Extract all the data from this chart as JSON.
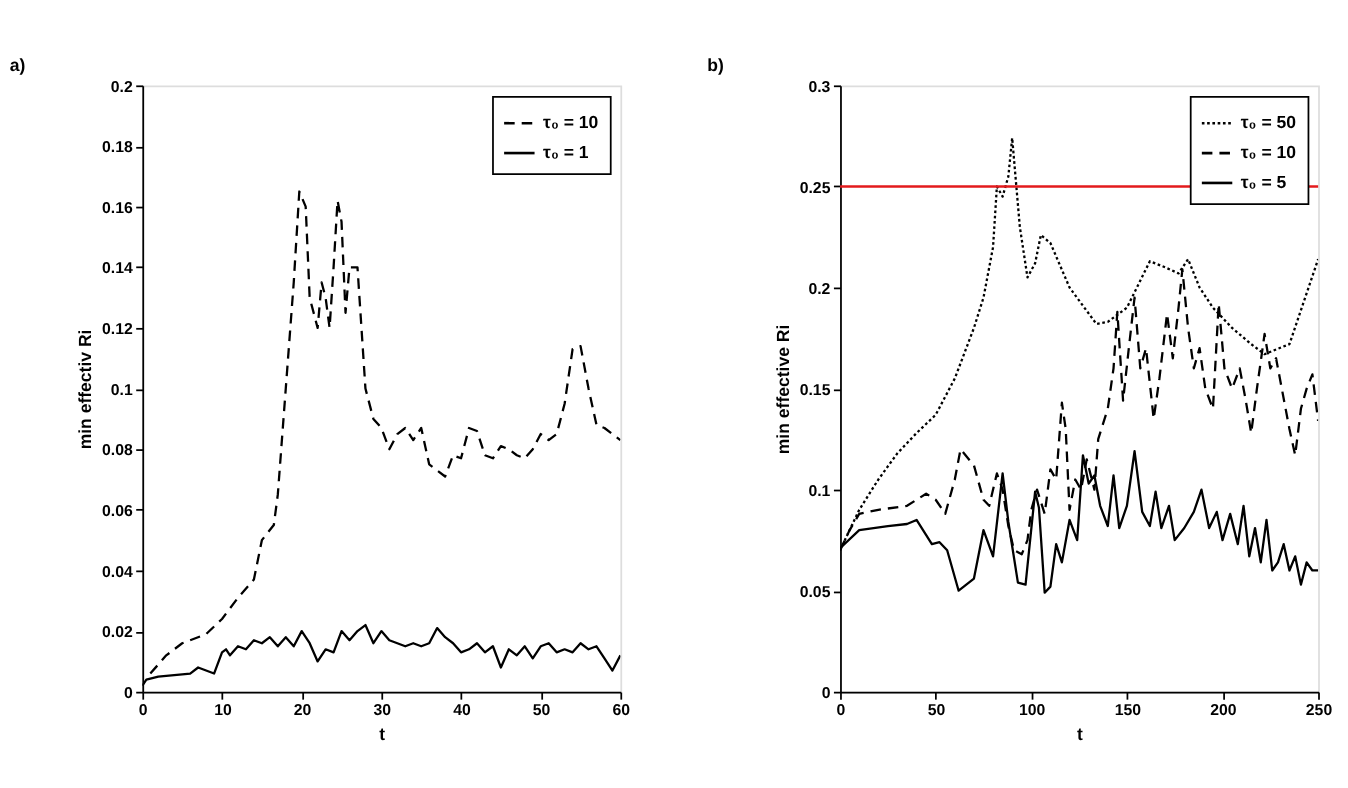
{
  "chart_data": [
    {
      "type": "line",
      "annotations": [
        "a)"
      ],
      "xlabel": "t",
      "ylabel": "min effectiv Ri",
      "xlim": [
        0,
        60
      ],
      "ylim": [
        0,
        0.2
      ],
      "xticks": [
        0,
        10,
        20,
        30,
        40,
        50,
        60
      ],
      "yticks": [
        0,
        0.02,
        0.04,
        0.06,
        0.08,
        0.1,
        0.12,
        0.14,
        0.16,
        0.18,
        0.2
      ],
      "legend": "top right",
      "series": [
        {
          "name": "τ₀ = 10",
          "color": "#000000",
          "line_style": "dashed",
          "x": [
            1,
            3,
            5,
            8,
            10,
            12,
            14,
            15,
            16.5,
            17,
            18,
            19,
            19.7,
            20.5,
            21,
            22,
            22.5,
            23,
            23.5,
            24,
            24.5,
            25,
            25.5,
            26,
            27,
            28,
            29,
            30,
            31,
            32,
            33,
            34,
            35,
            36,
            37,
            38,
            39,
            40,
            41,
            42,
            43,
            44,
            45,
            46,
            47,
            48,
            49,
            50,
            51,
            52,
            53,
            54,
            55,
            56,
            57,
            58,
            59,
            60
          ],
          "values": [
            0.006,
            0.012,
            0.016,
            0.019,
            0.024,
            0.031,
            0.037,
            0.05,
            0.055,
            0.065,
            0.1,
            0.135,
            0.165,
            0.16,
            0.13,
            0.12,
            0.135,
            0.13,
            0.12,
            0.14,
            0.162,
            0.155,
            0.125,
            0.14,
            0.14,
            0.1,
            0.09,
            0.087,
            0.08,
            0.085,
            0.087,
            0.083,
            0.087,
            0.075,
            0.073,
            0.071,
            0.078,
            0.077,
            0.087,
            0.086,
            0.078,
            0.077,
            0.081,
            0.08,
            0.078,
            0.077,
            0.08,
            0.085,
            0.083,
            0.085,
            0.095,
            0.113,
            0.114,
            0.1,
            0.088,
            0.087,
            0.085,
            0.083
          ]
        },
        {
          "name": "τ₀ = 1",
          "color": "#000000",
          "line_style": "solid",
          "x": [
            0,
            0.5,
            2,
            6,
            7,
            8,
            9,
            10,
            10.5,
            11,
            12,
            13,
            14,
            15,
            16,
            17,
            18,
            19,
            20,
            21,
            22,
            23,
            24,
            25,
            26,
            27,
            28,
            29,
            30,
            31,
            32,
            33,
            34,
            35,
            36,
            37,
            38,
            39,
            40,
            41,
            42,
            43,
            44,
            45,
            46,
            47,
            48,
            49,
            50,
            51,
            52,
            53,
            54,
            55,
            56,
            57,
            58,
            59,
            60
          ],
          "values": [
            0.002,
            0.004,
            0.005,
            0.006,
            0.008,
            0.007,
            0.006,
            0.013,
            0.014,
            0.012,
            0.015,
            0.014,
            0.017,
            0.016,
            0.018,
            0.015,
            0.018,
            0.015,
            0.02,
            0.016,
            0.01,
            0.014,
            0.013,
            0.02,
            0.017,
            0.02,
            0.022,
            0.016,
            0.02,
            0.017,
            0.016,
            0.015,
            0.016,
            0.015,
            0.016,
            0.021,
            0.018,
            0.016,
            0.013,
            0.014,
            0.016,
            0.013,
            0.015,
            0.008,
            0.014,
            0.012,
            0.015,
            0.011,
            0.015,
            0.016,
            0.013,
            0.014,
            0.013,
            0.016,
            0.014,
            0.015,
            0.011,
            0.007,
            0.012
          ]
        }
      ]
    },
    {
      "type": "line",
      "annotations": [
        "b)"
      ],
      "xlabel": "t",
      "ylabel": "min effective Ri",
      "xlim": [
        0,
        250
      ],
      "ylim": [
        0,
        0.3
      ],
      "xticks": [
        0,
        50,
        100,
        150,
        200,
        250
      ],
      "yticks": [
        0,
        0.05,
        0.1,
        0.15,
        0.2,
        0.25,
        0.3
      ],
      "legend": "top right",
      "ref_lines": [
        {
          "axis": "y",
          "value": 0.25,
          "color": "#e31a1c"
        }
      ],
      "series": [
        {
          "name": "τ₀ = 50",
          "color": "#000000",
          "line_style": "dotted",
          "x": [
            0,
            5,
            10,
            20,
            30,
            40,
            50,
            60,
            70,
            75,
            80,
            82,
            85,
            88,
            90,
            94,
            98,
            102,
            105,
            110,
            120,
            134,
            140,
            150,
            162,
            170,
            177,
            182,
            188,
            195,
            205,
            215,
            222,
            235,
            245,
            250
          ],
          "values": [
            0.07,
            0.08,
            0.09,
            0.105,
            0.118,
            0.128,
            0.137,
            0.155,
            0.18,
            0.195,
            0.22,
            0.25,
            0.245,
            0.255,
            0.274,
            0.23,
            0.205,
            0.212,
            0.226,
            0.222,
            0.2,
            0.182,
            0.183,
            0.19,
            0.213,
            0.21,
            0.207,
            0.214,
            0.2,
            0.19,
            0.18,
            0.172,
            0.167,
            0.172,
            0.2,
            0.214
          ]
        },
        {
          "name": "τ₀ = 10",
          "color": "#000000",
          "line_style": "dashed",
          "x": [
            0,
            5,
            10,
            20,
            35,
            45,
            50,
            55,
            60,
            63,
            70,
            75,
            78,
            82,
            85,
            88,
            91,
            95,
            98,
            100,
            103,
            107,
            110,
            113,
            116,
            118,
            120,
            123,
            126,
            129,
            133,
            135,
            140,
            143,
            145,
            148,
            151,
            154,
            157,
            160,
            164,
            167,
            171,
            174,
            177,
            179,
            182,
            185,
            188,
            191,
            195,
            198,
            201,
            205,
            209,
            212,
            215,
            218,
            222,
            225,
            228,
            231,
            235,
            238,
            241,
            244,
            247,
            250
          ],
          "values": [
            0.07,
            0.08,
            0.088,
            0.09,
            0.092,
            0.098,
            0.095,
            0.088,
            0.105,
            0.12,
            0.112,
            0.095,
            0.092,
            0.108,
            0.1,
            0.082,
            0.07,
            0.068,
            0.075,
            0.09,
            0.1,
            0.088,
            0.11,
            0.105,
            0.143,
            0.13,
            0.09,
            0.105,
            0.1,
            0.115,
            0.1,
            0.125,
            0.14,
            0.16,
            0.188,
            0.144,
            0.17,
            0.195,
            0.16,
            0.17,
            0.135,
            0.155,
            0.187,
            0.165,
            0.19,
            0.209,
            0.18,
            0.16,
            0.17,
            0.15,
            0.14,
            0.192,
            0.16,
            0.15,
            0.16,
            0.145,
            0.128,
            0.15,
            0.177,
            0.16,
            0.165,
            0.15,
            0.13,
            0.117,
            0.14,
            0.15,
            0.157,
            0.134
          ]
        },
        {
          "name": "τ₀ = 5",
          "color": "#000000",
          "line_style": "solid",
          "x": [
            0,
            10,
            25,
            35,
            40,
            48,
            52,
            56,
            62,
            70,
            75,
            80,
            85,
            88,
            93,
            97,
            102,
            104,
            107,
            110,
            113,
            116,
            120,
            124,
            127,
            130,
            133,
            136,
            140,
            143,
            146,
            150,
            154,
            158,
            162,
            165,
            168,
            172,
            175,
            180,
            185,
            189,
            193,
            197,
            200,
            204,
            208,
            211,
            214,
            217,
            220,
            223,
            226,
            229,
            232,
            235,
            238,
            241,
            244,
            247,
            250
          ],
          "values": [
            0.071,
            0.08,
            0.082,
            0.083,
            0.085,
            0.073,
            0.074,
            0.07,
            0.05,
            0.056,
            0.08,
            0.067,
            0.108,
            0.084,
            0.054,
            0.053,
            0.099,
            0.091,
            0.049,
            0.052,
            0.073,
            0.064,
            0.085,
            0.075,
            0.117,
            0.103,
            0.107,
            0.092,
            0.082,
            0.107,
            0.081,
            0.092,
            0.119,
            0.089,
            0.082,
            0.099,
            0.081,
            0.092,
            0.075,
            0.081,
            0.089,
            0.1,
            0.081,
            0.089,
            0.075,
            0.088,
            0.073,
            0.092,
            0.067,
            0.081,
            0.064,
            0.085,
            0.06,
            0.064,
            0.073,
            0.06,
            0.067,
            0.053,
            0.064,
            0.06,
            0.06
          ]
        }
      ]
    }
  ]
}
